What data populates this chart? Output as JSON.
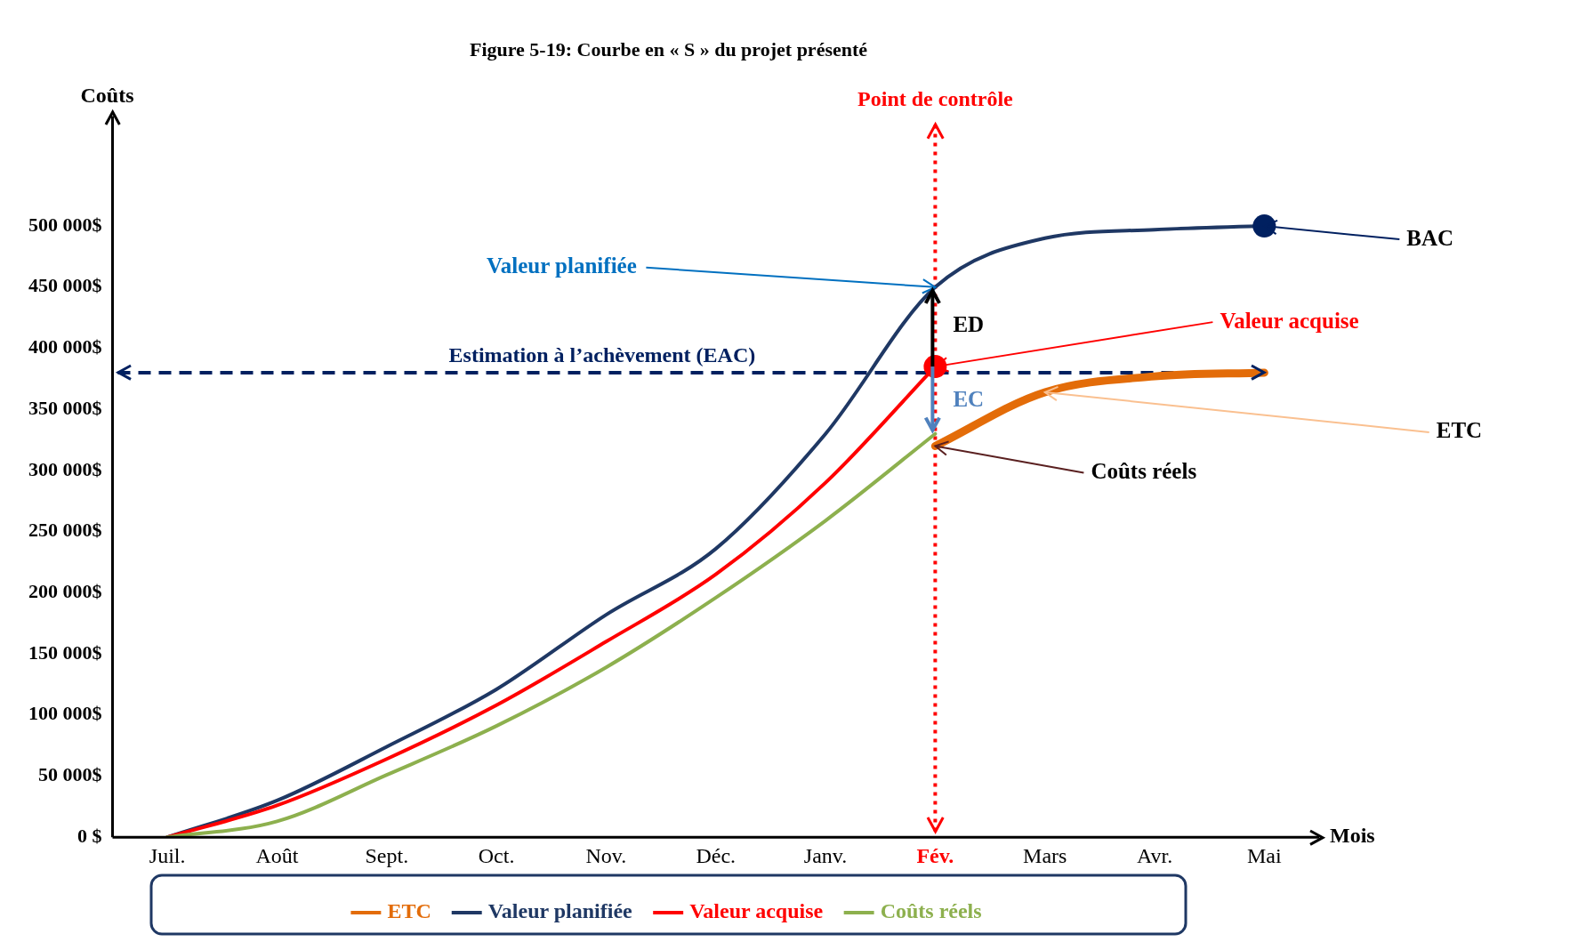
{
  "chart_data": {
    "type": "line",
    "title": "Figure 5-19: Courbe en « S » du projet présenté",
    "xlabel": "Mois",
    "ylabel": "Coûts",
    "categories": [
      "Juil.",
      "Août",
      "Sept.",
      "Oct.",
      "Nov.",
      "Déc.",
      "Janv.",
      "Fév.",
      "Mars",
      "Avr.",
      "Mai"
    ],
    "series": [
      {
        "name": "ETC",
        "color": "#e36c09",
        "values": [
          null,
          null,
          null,
          null,
          null,
          null,
          null,
          320000,
          364000,
          377000,
          380000
        ]
      },
      {
        "name": "Valeur planifiée",
        "color": "#1f3864",
        "values": [
          0,
          30000,
          74000,
          121000,
          182000,
          236000,
          330000,
          450000,
          490000,
          497000,
          500000
        ]
      },
      {
        "name": "Valeur acquise",
        "color": "#ff0000",
        "values": [
          0,
          26000,
          64000,
          108000,
          160000,
          215000,
          290000,
          385000,
          null,
          null,
          null
        ]
      },
      {
        "name": "Coûts réels",
        "color": "#8db04e",
        "values": [
          0,
          13000,
          51000,
          91000,
          139000,
          196000,
          259000,
          330000,
          null,
          null,
          null
        ]
      }
    ],
    "ylim": [
      0,
      590000
    ],
    "yticks": [
      {
        "value": 0,
        "label": "0 $"
      },
      {
        "value": 50000,
        "label": "50 000$"
      },
      {
        "value": 100000,
        "label": "100 000$"
      },
      {
        "value": 150000,
        "label": "150 000$"
      },
      {
        "value": 200000,
        "label": "200 000$"
      },
      {
        "value": 250000,
        "label": "250 000$"
      },
      {
        "value": 300000,
        "label": "300 000$"
      },
      {
        "value": 350000,
        "label": "350 000$"
      },
      {
        "value": 400000,
        "label": "400 000$"
      },
      {
        "value": 450000,
        "label": "450 000$"
      },
      {
        "value": 500000,
        "label": "500 000$"
      }
    ],
    "ref_lines": [
      {
        "axis": "x",
        "value": "Fév.",
        "label": "Point de contrôle",
        "color": "#ff0000",
        "line_style": "dotted"
      },
      {
        "axis": "y",
        "value": 380000,
        "label": "Estimation à l’achèvement (EAC)",
        "color": "#002060",
        "line_style": "dashed"
      }
    ],
    "annotations": [
      {
        "text": "Valeur planifiée",
        "x": "Fév.",
        "y": 450000
      },
      {
        "text": "Valeur acquise",
        "x": "Fév.",
        "y": 385000
      },
      {
        "text": "Coûts réels",
        "x": "Fév.",
        "y": 320000
      },
      {
        "text": "ETC",
        "x": "Mars",
        "y": 364000
      },
      {
        "text": "BAC",
        "x": "Mai",
        "y": 500000
      },
      {
        "text": "ED",
        "x": "Fév.",
        "y": 418000
      },
      {
        "text": "EC",
        "x": "Fév.",
        "y": 357000
      }
    ],
    "grid": false,
    "legend": "bottom",
    "line_style": "solid"
  }
}
